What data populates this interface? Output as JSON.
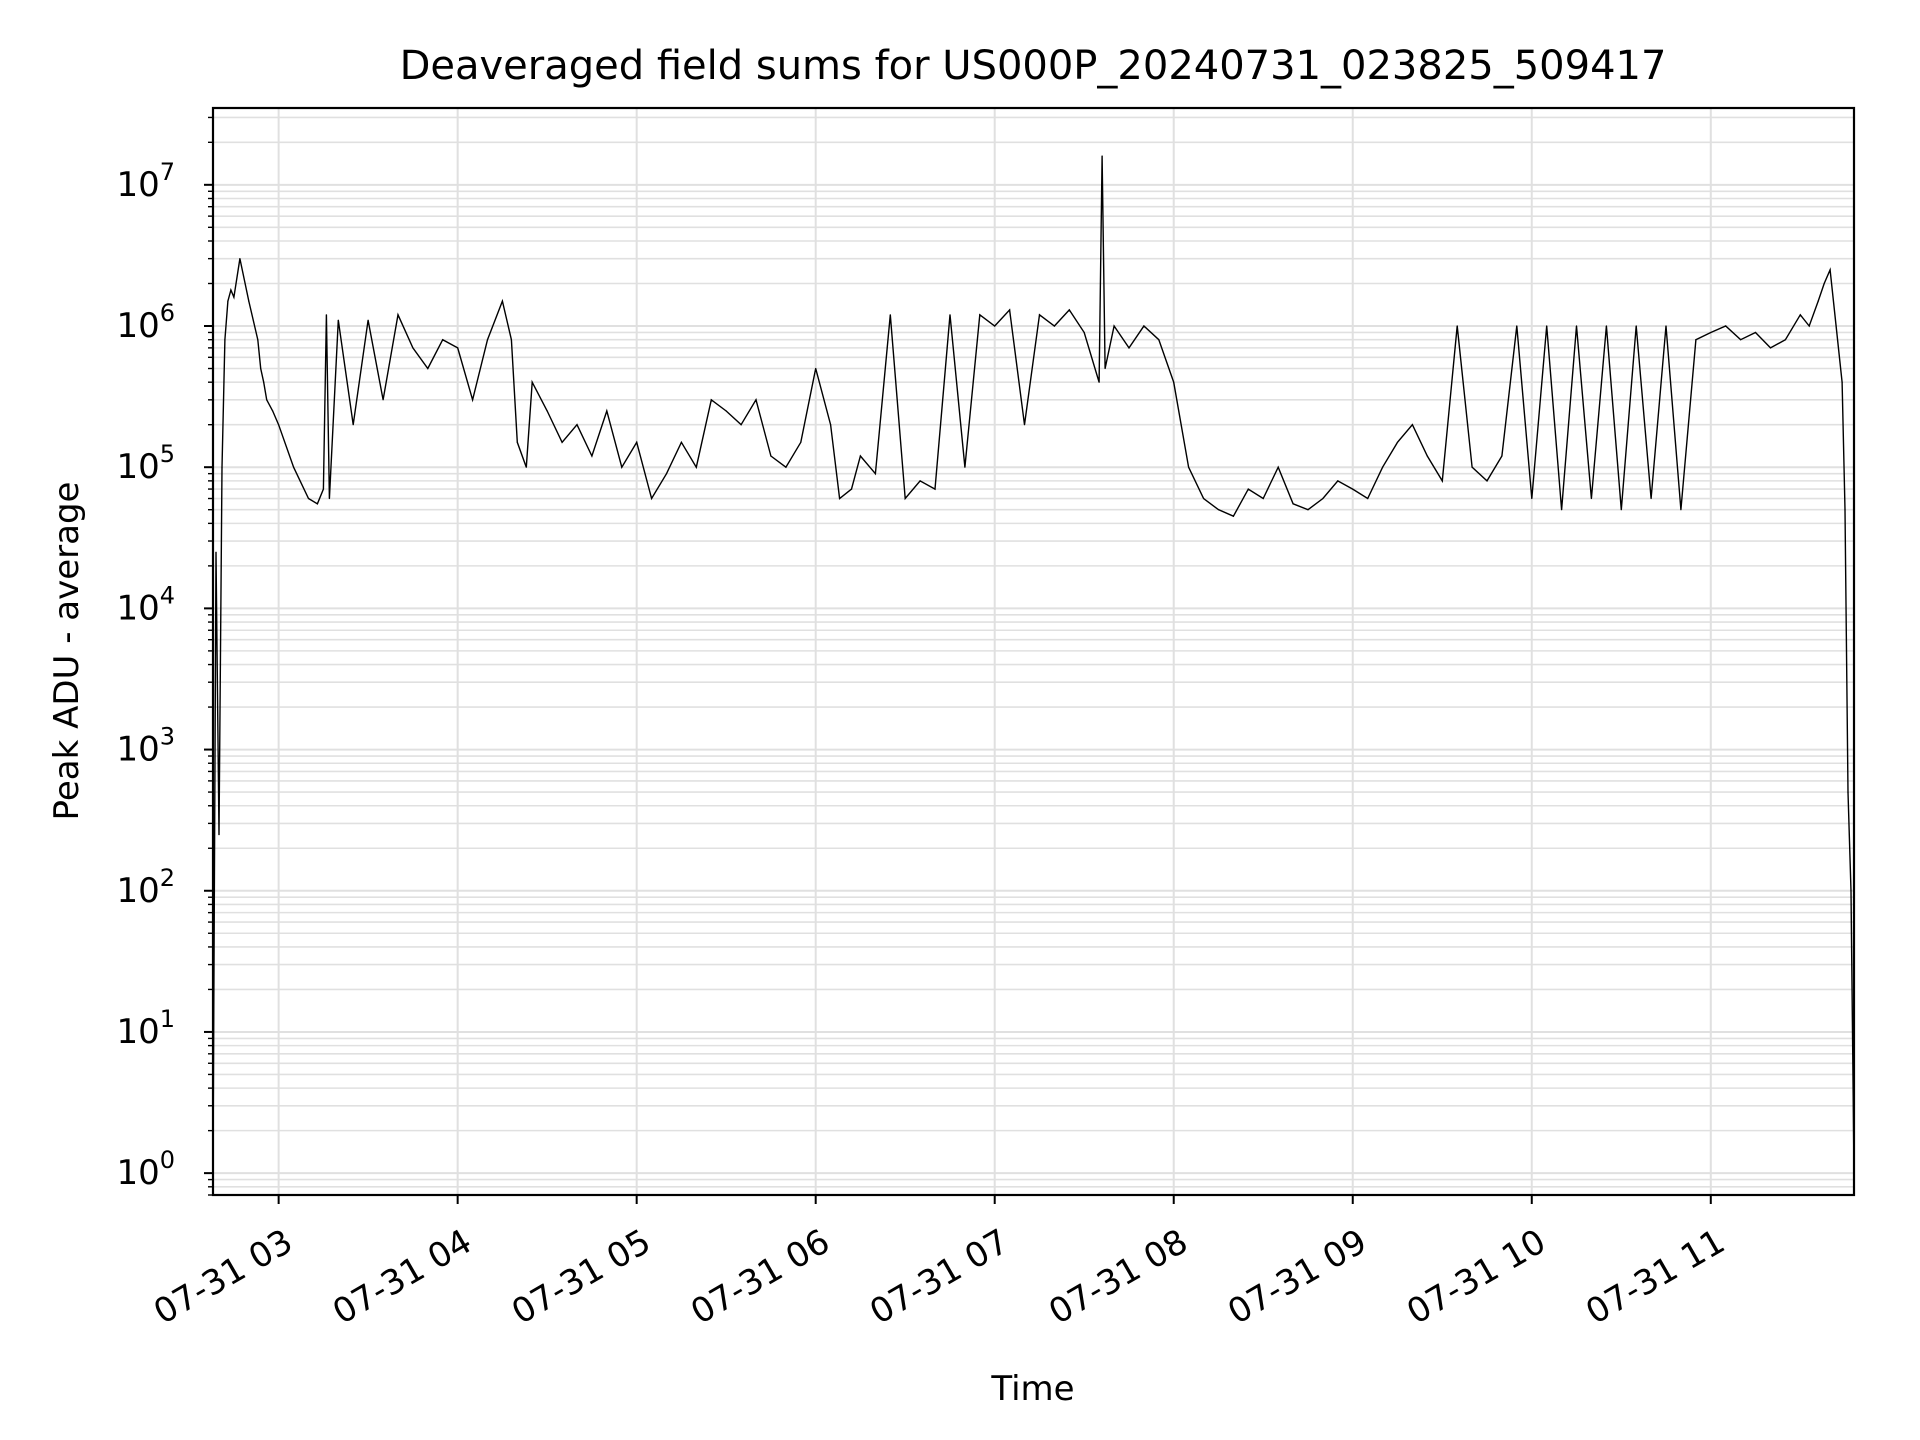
{
  "chart_data": {
    "type": "line",
    "title": "Deaveraged field sums for US000P_20240731_023825_509417",
    "xlabel": "Time",
    "ylabel": "Peak ADU - average",
    "y_scale": "log",
    "x_range": [
      "2024-07-31 02:38",
      "2024-07-31 11:48"
    ],
    "ylim": [
      0.7,
      35000000
    ],
    "grid": true,
    "line_color": "#000000",
    "grid_color": "#e0e0e0",
    "x_ticks": [
      {
        "value": "2024-07-31 03:00",
        "label": "07-31 03"
      },
      {
        "value": "2024-07-31 04:00",
        "label": "07-31 04"
      },
      {
        "value": "2024-07-31 05:00",
        "label": "07-31 05"
      },
      {
        "value": "2024-07-31 06:00",
        "label": "07-31 06"
      },
      {
        "value": "2024-07-31 07:00",
        "label": "07-31 07"
      },
      {
        "value": "2024-07-31 08:00",
        "label": "07-31 08"
      },
      {
        "value": "2024-07-31 09:00",
        "label": "07-31 09"
      },
      {
        "value": "2024-07-31 10:00",
        "label": "07-31 10"
      },
      {
        "value": "2024-07-31 11:00",
        "label": "07-31 11"
      }
    ],
    "y_ticks": [
      {
        "value": 1,
        "base": "10",
        "exp": "0"
      },
      {
        "value": 10,
        "base": "10",
        "exp": "1"
      },
      {
        "value": 100,
        "base": "10",
        "exp": "2"
      },
      {
        "value": 1000,
        "base": "10",
        "exp": "3"
      },
      {
        "value": 10000,
        "base": "10",
        "exp": "4"
      },
      {
        "value": 100000,
        "base": "10",
        "exp": "5"
      },
      {
        "value": 1000000,
        "base": "10",
        "exp": "6"
      },
      {
        "value": 10000000,
        "base": "10",
        "exp": "7"
      }
    ],
    "series": [
      {
        "x": [
          "2024-07-31 02:38",
          "2024-07-31 02:39",
          "2024-07-31 02:40",
          "2024-07-31 02:41",
          "2024-07-31 02:42",
          "2024-07-31 02:43",
          "2024-07-31 02:44",
          "2024-07-31 02:45",
          "2024-07-31 02:47",
          "2024-07-31 02:50",
          "2024-07-31 02:53",
          "2024-07-31 02:54",
          "2024-07-31 02:55",
          "2024-07-31 02:56",
          "2024-07-31 02:58",
          "2024-07-31 03:00",
          "2024-07-31 03:05",
          "2024-07-31 03:10",
          "2024-07-31 03:13",
          "2024-07-31 03:15",
          "2024-07-31 03:16",
          "2024-07-31 03:17",
          "2024-07-31 03:20",
          "2024-07-31 03:25",
          "2024-07-31 03:30",
          "2024-07-31 03:35",
          "2024-07-31 03:40",
          "2024-07-31 03:45",
          "2024-07-31 03:50",
          "2024-07-31 03:55",
          "2024-07-31 04:00",
          "2024-07-31 04:05",
          "2024-07-31 04:10",
          "2024-07-31 04:15",
          "2024-07-31 04:18",
          "2024-07-31 04:20",
          "2024-07-31 04:23",
          "2024-07-31 04:25",
          "2024-07-31 04:30",
          "2024-07-31 04:35",
          "2024-07-31 04:40",
          "2024-07-31 04:45",
          "2024-07-31 04:50",
          "2024-07-31 04:55",
          "2024-07-31 05:00",
          "2024-07-31 05:05",
          "2024-07-31 05:10",
          "2024-07-31 05:15",
          "2024-07-31 05:20",
          "2024-07-31 05:25",
          "2024-07-31 05:30",
          "2024-07-31 05:35",
          "2024-07-31 05:40",
          "2024-07-31 05:45",
          "2024-07-31 05:50",
          "2024-07-31 05:55",
          "2024-07-31 06:00",
          "2024-07-31 06:05",
          "2024-07-31 06:08",
          "2024-07-31 06:12",
          "2024-07-31 06:15",
          "2024-07-31 06:20",
          "2024-07-31 06:25",
          "2024-07-31 06:30",
          "2024-07-31 06:35",
          "2024-07-31 06:40",
          "2024-07-31 06:45",
          "2024-07-31 06:50",
          "2024-07-31 06:55",
          "2024-07-31 07:00",
          "2024-07-31 07:05",
          "2024-07-31 07:10",
          "2024-07-31 07:15",
          "2024-07-31 07:20",
          "2024-07-31 07:25",
          "2024-07-31 07:30",
          "2024-07-31 07:35",
          "2024-07-31 07:36",
          "2024-07-31 07:37",
          "2024-07-31 07:40",
          "2024-07-31 07:45",
          "2024-07-31 07:50",
          "2024-07-31 07:55",
          "2024-07-31 08:00",
          "2024-07-31 08:05",
          "2024-07-31 08:10",
          "2024-07-31 08:15",
          "2024-07-31 08:20",
          "2024-07-31 08:25",
          "2024-07-31 08:30",
          "2024-07-31 08:35",
          "2024-07-31 08:40",
          "2024-07-31 08:45",
          "2024-07-31 08:50",
          "2024-07-31 08:55",
          "2024-07-31 09:00",
          "2024-07-31 09:05",
          "2024-07-31 09:10",
          "2024-07-31 09:15",
          "2024-07-31 09:20",
          "2024-07-31 09:25",
          "2024-07-31 09:30",
          "2024-07-31 09:35",
          "2024-07-31 09:40",
          "2024-07-31 09:45",
          "2024-07-31 09:50",
          "2024-07-31 09:55",
          "2024-07-31 10:00",
          "2024-07-31 10:05",
          "2024-07-31 10:10",
          "2024-07-31 10:15",
          "2024-07-31 10:20",
          "2024-07-31 10:25",
          "2024-07-31 10:30",
          "2024-07-31 10:35",
          "2024-07-31 10:40",
          "2024-07-31 10:45",
          "2024-07-31 10:50",
          "2024-07-31 10:55",
          "2024-07-31 11:00",
          "2024-07-31 11:05",
          "2024-07-31 11:10",
          "2024-07-31 11:15",
          "2024-07-31 11:20",
          "2024-07-31 11:25",
          "2024-07-31 11:30",
          "2024-07-31 11:33",
          "2024-07-31 11:36",
          "2024-07-31 11:38",
          "2024-07-31 11:40",
          "2024-07-31 11:42",
          "2024-07-31 11:44",
          "2024-07-31 11:45",
          "2024-07-31 11:46",
          "2024-07-31 11:47",
          "2024-07-31 11:48"
        ],
        "y": [
          1,
          25000,
          250,
          100000,
          800000,
          1500000,
          1800000,
          1600000,
          3000000,
          1500000,
          800000,
          500000,
          400000,
          300000,
          250000,
          200000,
          100000,
          60000,
          55000,
          70000,
          1200000,
          60000,
          1100000,
          200000,
          1100000,
          300000,
          1200000,
          700000,
          500000,
          800000,
          700000,
          300000,
          800000,
          1500000,
          800000,
          150000,
          100000,
          400000,
          250000,
          150000,
          200000,
          120000,
          250000,
          100000,
          150000,
          60000,
          90000,
          150000,
          100000,
          300000,
          250000,
          200000,
          300000,
          120000,
          100000,
          150000,
          500000,
          200000,
          60000,
          70000,
          120000,
          90000,
          1200000,
          60000,
          80000,
          70000,
          1200000,
          100000,
          1200000,
          1000000,
          1300000,
          200000,
          1200000,
          1000000,
          1300000,
          900000,
          400000,
          16000000,
          500000,
          1000000,
          700000,
          1000000,
          800000,
          400000,
          100000,
          60000,
          50000,
          45000,
          70000,
          60000,
          100000,
          55000,
          50000,
          60000,
          80000,
          70000,
          60000,
          100000,
          150000,
          200000,
          120000,
          80000,
          1000000,
          100000,
          80000,
          120000,
          1000000,
          60000,
          1000000,
          50000,
          1000000,
          60000,
          1000000,
          50000,
          1000000,
          60000,
          1000000,
          50000,
          800000,
          900000,
          1000000,
          800000,
          900000,
          700000,
          800000,
          1200000,
          1000000,
          1500000,
          2000000,
          2500000,
          1000000,
          400000,
          50000,
          500,
          100,
          1
        ]
      }
    ]
  }
}
